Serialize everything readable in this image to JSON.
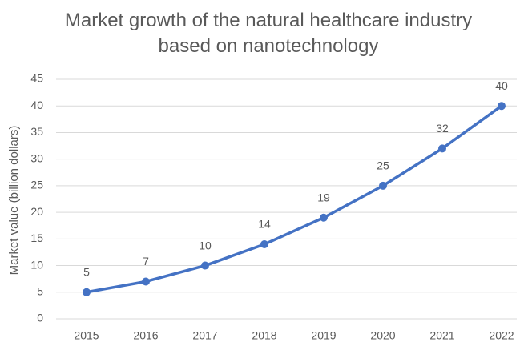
{
  "chart_data": {
    "type": "line",
    "title": "Market growth of the natural healthcare industry based on nanotechnology",
    "y_label": "Market value (billion dollars)",
    "categories": [
      "2015",
      "2016",
      "2017",
      "2018",
      "2019",
      "2020",
      "2021",
      "2022"
    ],
    "values": [
      5,
      7,
      10,
      14,
      19,
      25,
      32,
      40
    ],
    "color": "#4472c4",
    "ylim": [
      0,
      45
    ],
    "yticks": [
      0,
      5,
      10,
      15,
      20,
      25,
      30,
      35,
      40,
      45
    ],
    "grid": true
  }
}
